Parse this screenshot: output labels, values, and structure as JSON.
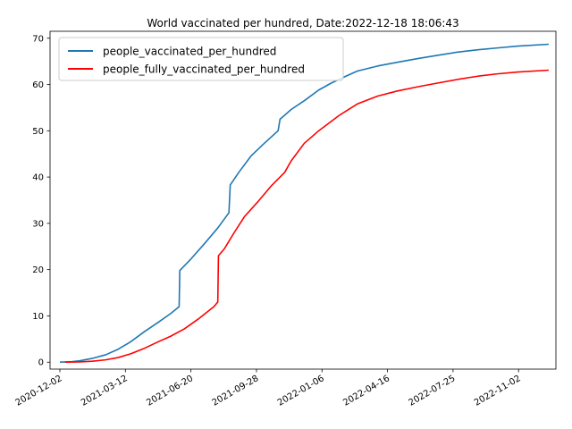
{
  "chart_data": {
    "type": "line",
    "title": "World vaccinated per hundred, Date:2022-12-18 18:06:43",
    "xlabel": "",
    "ylabel": "",
    "ylim": [
      -1.5,
      71.5
    ],
    "xlim": [
      "2020-11-17",
      "2022-12-29"
    ],
    "x_ticks": [
      "2020-12-02",
      "2021-03-12",
      "2021-06-20",
      "2021-09-28",
      "2022-01-06",
      "2022-04-16",
      "2022-07-25",
      "2022-11-02"
    ],
    "y_ticks": [
      0,
      10,
      20,
      30,
      40,
      50,
      60,
      70
    ],
    "grid": false,
    "legend_position": "upper left",
    "series": [
      {
        "name": "people_vaccinated_per_hundred",
        "color": "#1f77b4",
        "points": [
          [
            "2020-12-02",
            0.0
          ],
          [
            "2020-12-20",
            0.1
          ],
          [
            "2021-01-01",
            0.3
          ],
          [
            "2021-01-20",
            0.8
          ],
          [
            "2021-02-10",
            1.6
          ],
          [
            "2021-03-01",
            2.8
          ],
          [
            "2021-03-20",
            4.4
          ],
          [
            "2021-04-10",
            6.6
          ],
          [
            "2021-05-01",
            8.6
          ],
          [
            "2021-05-20",
            10.5
          ],
          [
            "2021-06-02",
            12.0
          ],
          [
            "2021-06-03",
            19.8
          ],
          [
            "2021-06-20",
            22.3
          ],
          [
            "2021-07-10",
            25.5
          ],
          [
            "2021-07-31",
            29.0
          ],
          [
            "2021-08-17",
            32.3
          ],
          [
            "2021-08-19",
            38.3
          ],
          [
            "2021-09-01",
            41.0
          ],
          [
            "2021-09-20",
            44.6
          ],
          [
            "2021-10-10",
            47.3
          ],
          [
            "2021-10-31",
            50.0
          ],
          [
            "2021-11-03",
            52.5
          ],
          [
            "2021-11-20",
            54.6
          ],
          [
            "2021-12-10",
            56.5
          ],
          [
            "2022-01-01",
            58.8
          ],
          [
            "2022-01-20",
            60.3
          ],
          [
            "2022-02-10",
            61.7
          ],
          [
            "2022-03-01",
            62.9
          ],
          [
            "2022-04-01",
            64.0
          ],
          [
            "2022-05-01",
            64.8
          ],
          [
            "2022-06-01",
            65.6
          ],
          [
            "2022-07-01",
            66.3
          ],
          [
            "2022-08-01",
            67.0
          ],
          [
            "2022-09-01",
            67.5
          ],
          [
            "2022-10-01",
            67.9
          ],
          [
            "2022-11-01",
            68.3
          ],
          [
            "2022-12-18",
            68.7
          ]
        ]
      },
      {
        "name": "people_fully_vaccinated_per_hundred",
        "color": "#ff0000",
        "points": [
          [
            "2020-12-10",
            0.0
          ],
          [
            "2021-01-01",
            0.05
          ],
          [
            "2021-01-20",
            0.2
          ],
          [
            "2021-02-10",
            0.5
          ],
          [
            "2021-03-01",
            1.0
          ],
          [
            "2021-03-20",
            1.8
          ],
          [
            "2021-04-10",
            3.0
          ],
          [
            "2021-05-01",
            4.4
          ],
          [
            "2021-05-20",
            5.6
          ],
          [
            "2021-06-10",
            7.2
          ],
          [
            "2021-07-01",
            9.3
          ],
          [
            "2021-07-25",
            12.0
          ],
          [
            "2021-07-31",
            13.0
          ],
          [
            "2021-08-01",
            23.0
          ],
          [
            "2021-08-10",
            24.5
          ],
          [
            "2021-08-25",
            28.0
          ],
          [
            "2021-09-10",
            31.5
          ],
          [
            "2021-10-01",
            34.8
          ],
          [
            "2021-10-20",
            38.0
          ],
          [
            "2021-11-10",
            41.0
          ],
          [
            "2021-11-20",
            43.5
          ],
          [
            "2021-12-10",
            47.3
          ],
          [
            "2022-01-01",
            50.0
          ],
          [
            "2022-02-01",
            53.3
          ],
          [
            "2022-03-01",
            55.8
          ],
          [
            "2022-04-01",
            57.5
          ],
          [
            "2022-05-01",
            58.6
          ],
          [
            "2022-06-01",
            59.5
          ],
          [
            "2022-07-01",
            60.3
          ],
          [
            "2022-08-01",
            61.1
          ],
          [
            "2022-09-01",
            61.8
          ],
          [
            "2022-10-01",
            62.3
          ],
          [
            "2022-11-01",
            62.7
          ],
          [
            "2022-12-18",
            63.1
          ]
        ]
      }
    ]
  }
}
